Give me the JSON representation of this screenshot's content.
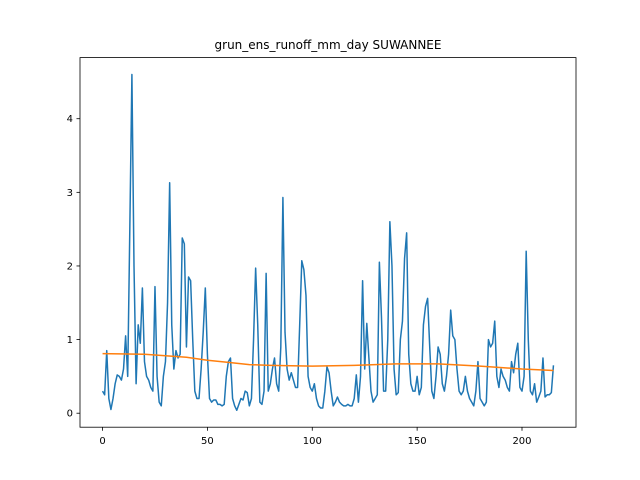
{
  "chart_data": {
    "type": "line",
    "title": "grun_ens_runoff_mm_day SUWANNEE",
    "xlim": [
      -10.75,
      225.75
    ],
    "xticks": [
      0,
      50,
      100,
      150,
      200
    ],
    "ylim": [
      -0.19,
      4.83
    ],
    "yticks": [
      0,
      1,
      2,
      3,
      4
    ],
    "series": [
      {
        "color": "#1f77b4",
        "x": [
          0,
          1,
          2,
          3,
          4,
          5,
          6,
          7,
          8,
          9,
          10,
          11,
          12,
          13,
          14,
          15,
          16,
          17,
          18,
          19,
          20,
          21,
          22,
          23,
          24,
          25,
          26,
          27,
          28,
          29,
          30,
          31,
          32,
          33,
          34,
          35,
          36,
          37,
          38,
          39,
          40,
          41,
          42,
          43,
          44,
          45,
          46,
          47,
          48,
          49,
          50,
          51,
          52,
          53,
          54,
          55,
          56,
          57,
          58,
          59,
          60,
          61,
          62,
          63,
          64,
          65,
          66,
          67,
          68,
          69,
          70,
          71,
          72,
          73,
          74,
          75,
          76,
          77,
          78,
          79,
          80,
          81,
          82,
          83,
          84,
          85,
          86,
          87,
          88,
          89,
          90,
          91,
          92,
          93,
          94,
          95,
          96,
          97,
          98,
          99,
          100,
          101,
          102,
          103,
          104,
          105,
          106,
          107,
          108,
          109,
          110,
          111,
          112,
          113,
          114,
          115,
          116,
          117,
          118,
          119,
          120,
          121,
          122,
          123,
          124,
          125,
          126,
          127,
          128,
          129,
          130,
          131,
          132,
          133,
          134,
          135,
          136,
          137,
          138,
          139,
          140,
          141,
          142,
          143,
          144,
          145,
          146,
          147,
          148,
          149,
          150,
          151,
          152,
          153,
          154,
          155,
          156,
          157,
          158,
          159,
          160,
          161,
          162,
          163,
          164,
          165,
          166,
          167,
          168,
          169,
          170,
          171,
          172,
          173,
          174,
          175,
          176,
          177,
          178,
          179,
          180,
          181,
          182,
          183,
          184,
          185,
          186,
          187,
          188,
          189,
          190,
          191,
          192,
          193,
          194,
          195,
          196,
          197,
          198,
          199,
          200,
          201,
          202,
          203,
          204,
          205,
          206,
          207,
          208,
          209,
          210,
          211,
          212,
          213,
          214,
          215
        ],
        "values": [
          0.3,
          0.25,
          0.85,
          0.2,
          0.05,
          0.2,
          0.4,
          0.52,
          0.5,
          0.45,
          0.6,
          1.05,
          0.5,
          2.5,
          4.6,
          2.0,
          0.4,
          1.2,
          0.95,
          1.7,
          0.7,
          0.5,
          0.45,
          0.35,
          0.3,
          1.72,
          0.5,
          0.15,
          0.1,
          0.5,
          0.7,
          1.5,
          3.13,
          1.2,
          0.6,
          0.85,
          0.75,
          0.8,
          2.38,
          2.3,
          0.9,
          1.85,
          1.8,
          1.0,
          0.3,
          0.2,
          0.2,
          0.6,
          1.1,
          1.7,
          0.8,
          0.2,
          0.15,
          0.18,
          0.18,
          0.12,
          0.12,
          0.1,
          0.12,
          0.5,
          0.7,
          0.75,
          0.2,
          0.1,
          0.04,
          0.12,
          0.2,
          0.18,
          0.3,
          0.28,
          0.1,
          0.2,
          1.0,
          1.97,
          1.2,
          0.15,
          0.12,
          0.3,
          1.9,
          0.3,
          0.4,
          0.6,
          0.75,
          0.4,
          0.3,
          0.9,
          2.93,
          1.1,
          0.6,
          0.45,
          0.55,
          0.45,
          0.35,
          0.35,
          1.2,
          2.07,
          1.95,
          1.6,
          0.5,
          0.35,
          0.3,
          0.4,
          0.2,
          0.1,
          0.07,
          0.07,
          0.3,
          0.63,
          0.55,
          0.3,
          0.1,
          0.15,
          0.22,
          0.15,
          0.12,
          0.1,
          0.1,
          0.12,
          0.1,
          0.1,
          0.2,
          0.52,
          0.15,
          0.5,
          1.8,
          0.6,
          1.22,
          0.75,
          0.3,
          0.15,
          0.2,
          0.25,
          2.05,
          1.3,
          0.3,
          0.3,
          1.0,
          2.6,
          2.0,
          0.6,
          0.25,
          0.28,
          1.0,
          1.25,
          2.1,
          2.45,
          0.8,
          0.4,
          0.3,
          0.3,
          0.5,
          0.25,
          0.35,
          1.2,
          1.45,
          1.56,
          0.9,
          0.3,
          0.2,
          0.5,
          0.9,
          0.8,
          0.4,
          0.3,
          0.5,
          0.8,
          1.4,
          1.05,
          1.0,
          0.6,
          0.3,
          0.25,
          0.3,
          0.5,
          0.3,
          0.2,
          0.15,
          0.1,
          0.3,
          0.7,
          0.2,
          0.15,
          0.1,
          0.15,
          1.0,
          0.9,
          0.95,
          1.25,
          0.5,
          0.35,
          0.6,
          0.5,
          0.45,
          0.35,
          0.3,
          0.7,
          0.55,
          0.8,
          0.95,
          0.35,
          0.3,
          0.5,
          2.2,
          1.0,
          0.3,
          0.25,
          0.4,
          0.15,
          0.22,
          0.3,
          0.75,
          0.22,
          0.25,
          0.25,
          0.28,
          0.65
        ]
      },
      {
        "color": "#ff7f0e",
        "x": [
          0,
          20,
          30,
          40,
          50,
          60,
          70,
          80,
          100,
          120,
          140,
          160,
          180,
          200,
          215
        ],
        "values": [
          0.81,
          0.8,
          0.78,
          0.76,
          0.72,
          0.69,
          0.66,
          0.65,
          0.64,
          0.65,
          0.67,
          0.67,
          0.64,
          0.6,
          0.58
        ]
      }
    ]
  }
}
